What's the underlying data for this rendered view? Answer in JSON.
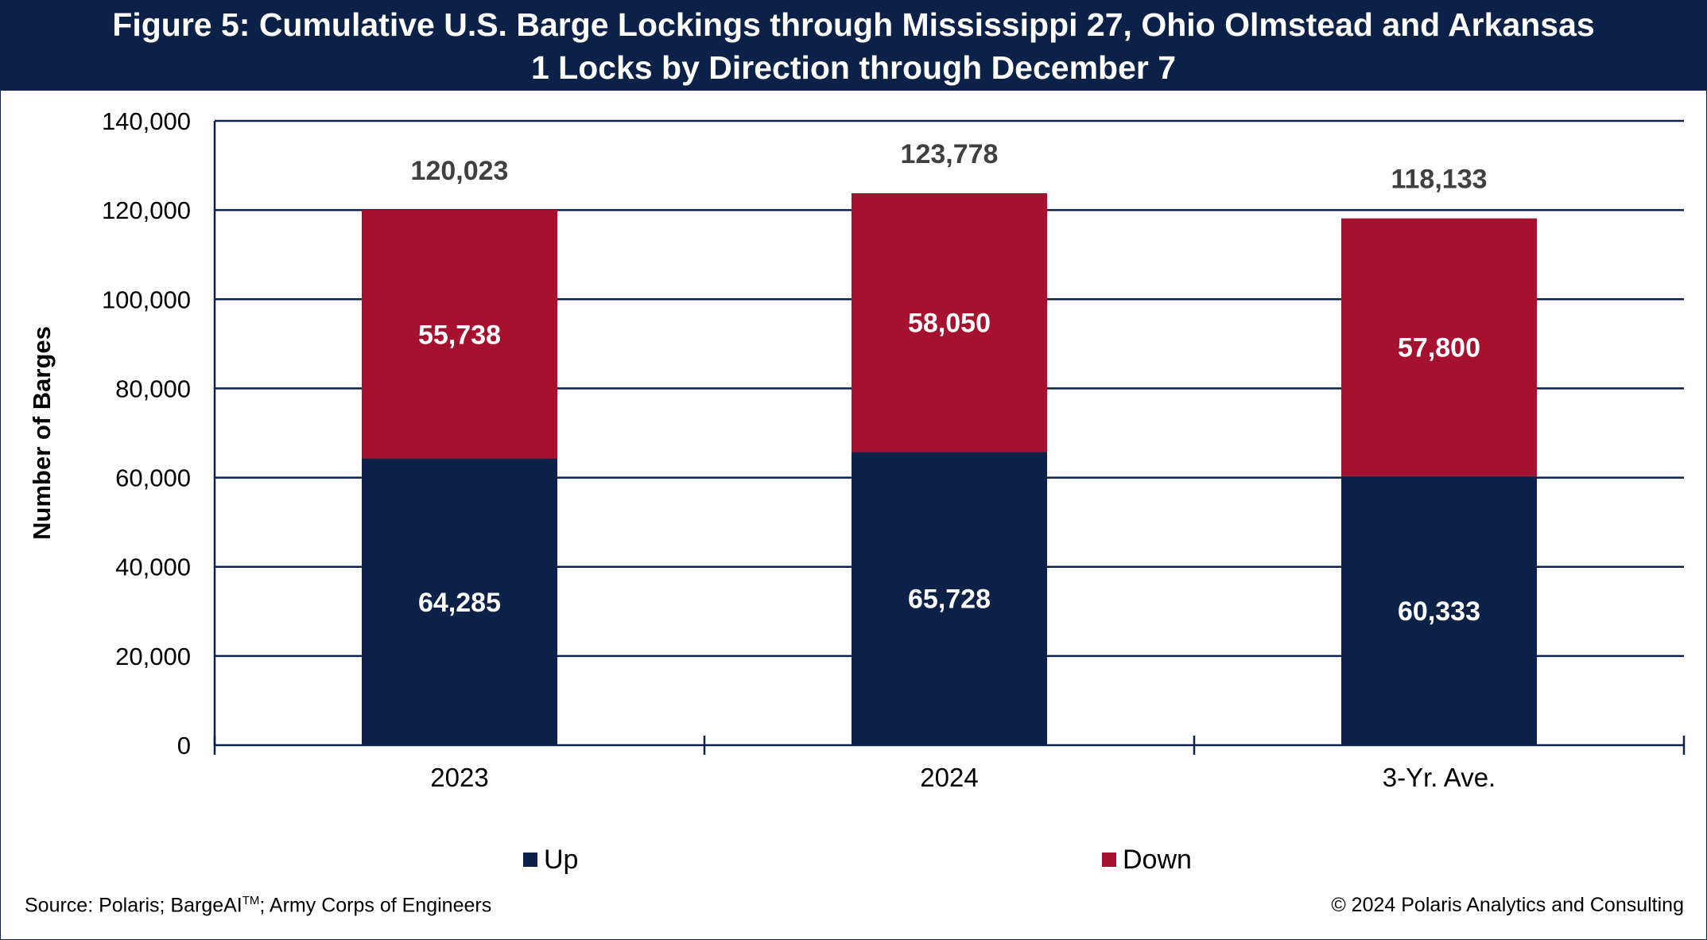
{
  "title": {
    "line1": "Figure 5: Cumulative U.S. Barge Lockings through Mississippi 27, Ohio Olmstead and Arkansas",
    "line2": "1 Locks by Direction through December 7"
  },
  "footer": {
    "source_prefix": "Source: Polaris; BargeAI",
    "source_tm": "TM",
    "source_suffix": "; Army Corps of Engineers",
    "copyright": "© 2024 Polaris Analytics and Consulting"
  },
  "chart_data": {
    "type": "bar",
    "stacked": true,
    "categories": [
      "2023",
      "2024",
      "3-Yr. Ave."
    ],
    "series": [
      {
        "name": "Up",
        "values": [
          64285,
          65728,
          60333
        ],
        "color": "#0b2147",
        "value_labels": [
          "64,285",
          "65,728",
          "60,333"
        ]
      },
      {
        "name": "Down",
        "values": [
          55738,
          58050,
          57800
        ],
        "color": "#a6112f",
        "value_labels": [
          "55,738",
          "58,050",
          "57,800"
        ]
      }
    ],
    "totals": [
      120023,
      123778,
      118133
    ],
    "total_labels": [
      "120,023",
      "123,778",
      "118,133"
    ],
    "ylabel": "Number of Barges",
    "xlabel": "",
    "ylim": [
      0,
      140000
    ],
    "yticks": [
      0,
      20000,
      40000,
      60000,
      80000,
      100000,
      120000,
      140000
    ],
    "ytick_labels": [
      "0",
      "20,000",
      "40,000",
      "60,000",
      "80,000",
      "100,000",
      "120,000",
      "140,000"
    ],
    "grid": true,
    "legend": "bottom",
    "gridline_color": "#0b2147",
    "total_label_color": "#404040",
    "segment_label_color": "#ffffff"
  }
}
